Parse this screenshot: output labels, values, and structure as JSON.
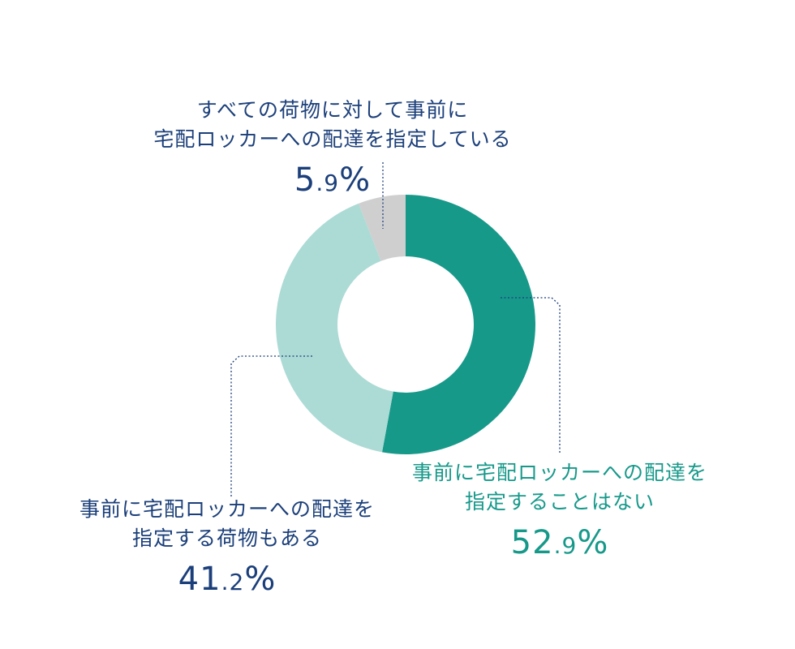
{
  "chart_data": {
    "type": "pie",
    "donut": true,
    "title": "",
    "legend": "none",
    "slices": [
      {
        "label_lines": [
          "事前に宅配ロッカーへの配達を",
          "指定することはない"
        ],
        "value": 52.9,
        "pct_int": "52",
        "pct_dec": "9",
        "color": "#17998a",
        "text_color": "#17998a"
      },
      {
        "label_lines": [
          "事前に宅配ロッカーへの配達を",
          "指定する荷物もある"
        ],
        "value": 41.2,
        "pct_int": "41",
        "pct_dec": "2",
        "color": "#acdbd5",
        "text_color": "#1b3f7a"
      },
      {
        "label_lines": [
          "すべての荷物に対して事前に",
          "宅配ロッカーへの配達を指定している"
        ],
        "value": 5.9,
        "pct_int": "5",
        "pct_dec": "9",
        "color": "#cfcfcf",
        "text_color": "#1b3f7a"
      }
    ],
    "percent_sign": "%",
    "leader_color": "#1b3f7a"
  }
}
